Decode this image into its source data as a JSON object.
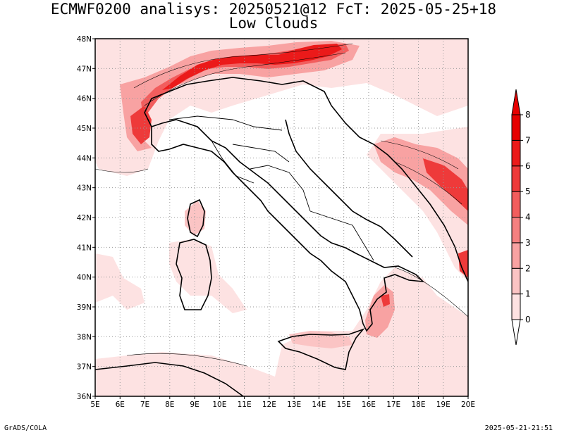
{
  "header": {
    "title_line1": "ECMWF0200 analisys: 20250521@12 FcT: 2025-05-25+18",
    "title_line2": "Low Clouds"
  },
  "map": {
    "lon_labels": [
      "5E",
      "6E",
      "7E",
      "8E",
      "9E",
      "10E",
      "11E",
      "12E",
      "13E",
      "14E",
      "15E",
      "16E",
      "17E",
      "18E",
      "19E",
      "20E"
    ],
    "lat_labels": [
      "36N",
      "37N",
      "38N",
      "39N",
      "40N",
      "41N",
      "42N",
      "43N",
      "44N",
      "45N",
      "46N",
      "47N",
      "48N"
    ],
    "lon_range": [
      5,
      20
    ],
    "lat_range": [
      36,
      48
    ],
    "grid": true
  },
  "colorbar": {
    "labels": [
      "0",
      "1",
      "2",
      "3",
      "4",
      "5",
      "6",
      "7",
      "8"
    ],
    "colors": [
      "#ffffff",
      "#fde2e2",
      "#fbc4c4",
      "#f8a2a2",
      "#f58080",
      "#f25d5d",
      "#ee3a3a",
      "#eb1a1a",
      "#e60000"
    ]
  },
  "footer": {
    "left": "GrADS/COLA",
    "right": "2025-05-21-21:51"
  }
}
